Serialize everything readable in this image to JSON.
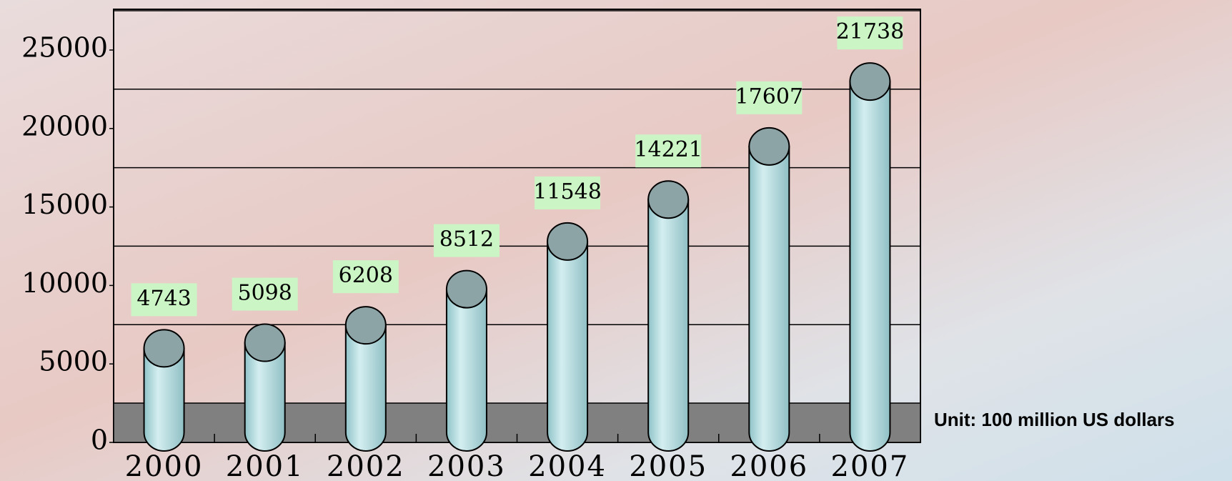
{
  "chart_data": {
    "type": "bar",
    "categories": [
      "2000",
      "2001",
      "2002",
      "2003",
      "2004",
      "2005",
      "2006",
      "2007"
    ],
    "values": [
      4743,
      5098,
      6208,
      8512,
      11548,
      14221,
      17607,
      21738
    ],
    "color": "#b4dfe2",
    "ylim": [
      0,
      25000
    ],
    "yticks": [
      0,
      5000,
      10000,
      15000,
      20000,
      25000
    ],
    "grid": true,
    "annotations": [
      "Unit: 100 million US dollars"
    ]
  }
}
